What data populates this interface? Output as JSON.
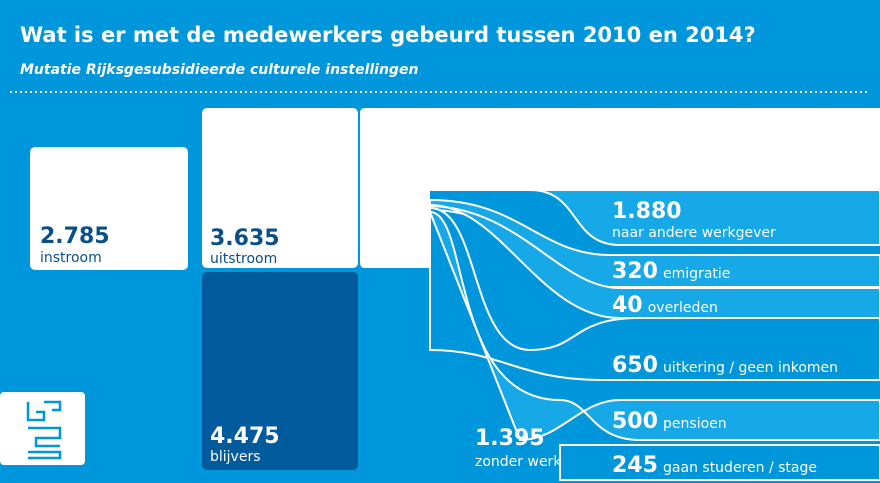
{
  "title": "Wat is er met de medewerkers gebeurd tussen 2010 en 2014?",
  "subtitle": "Mutatie Rijksgesubsidieerde culturele instellingen",
  "nodes": [
    {
      "value": "2.785",
      "label": "instroom"
    },
    {
      "value": "3.635",
      "label": "uitstroom"
    },
    {
      "value": "4.475",
      "label": "blijvers"
    },
    {
      "value": "1.395",
      "label": "zonder werk"
    },
    {
      "value": "1.880",
      "label": "naar andere werkgever"
    },
    {
      "value": "320",
      "label": "emigratie"
    },
    {
      "value": "40",
      "label": "overleden"
    },
    {
      "value": "650",
      "label": "uitkering / geen inkomen"
    },
    {
      "value": "500",
      "label": "pensioen"
    },
    {
      "value": "245",
      "label": "gaan studeren / stage"
    }
  ]
}
